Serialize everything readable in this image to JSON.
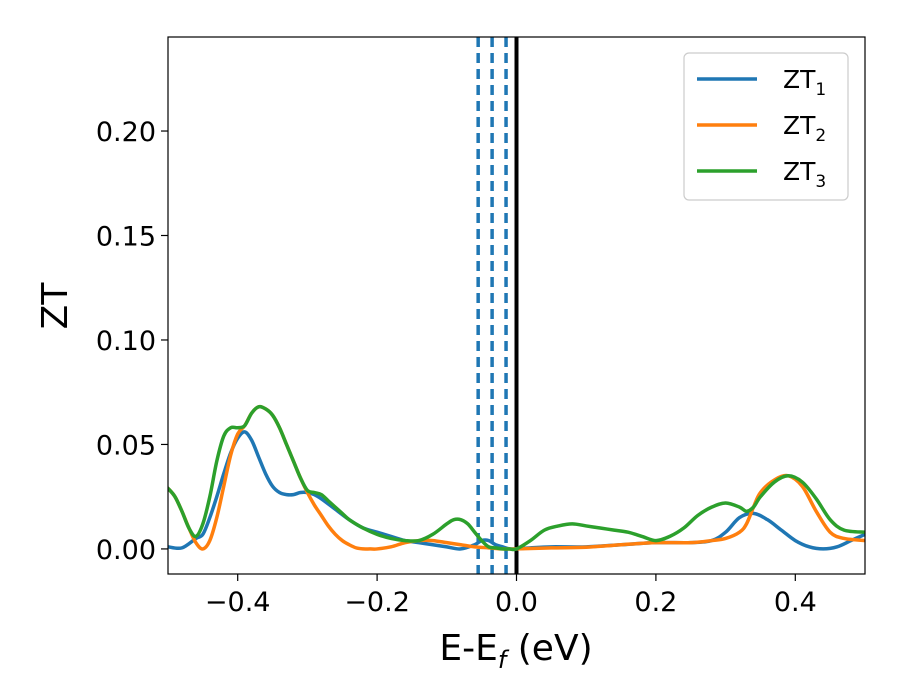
{
  "chart_data": {
    "type": "line",
    "xlabel": "E-E",
    "xlabel_subscript": "f",
    "xlabel_unit": "(eV)",
    "ylabel": "ZT",
    "xlim": [
      -0.5,
      0.5
    ],
    "ylim": [
      -0.012,
      0.245
    ],
    "xticks": [
      -0.4,
      -0.2,
      0.0,
      0.2,
      0.4
    ],
    "xtick_labels": [
      "−0.4",
      "−0.2",
      "0.0",
      "0.2",
      "0.4"
    ],
    "yticks": [
      0.0,
      0.05,
      0.1,
      0.15,
      0.2
    ],
    "ytick_labels": [
      "0.00",
      "0.05",
      "0.10",
      "0.15",
      "0.20"
    ],
    "grid": false,
    "legend_position": "top-right",
    "series": [
      {
        "name": "ZT",
        "name_subscript": "1",
        "color": "#1f77b4",
        "x": [
          -0.5,
          -0.48,
          -0.46,
          -0.45,
          -0.44,
          -0.43,
          -0.42,
          -0.41,
          -0.4,
          -0.39,
          -0.38,
          -0.37,
          -0.36,
          -0.35,
          -0.34,
          -0.33,
          -0.32,
          -0.31,
          -0.3,
          -0.29,
          -0.28,
          -0.26,
          -0.24,
          -0.22,
          -0.2,
          -0.18,
          -0.16,
          -0.14,
          -0.12,
          -0.1,
          -0.08,
          -0.06,
          -0.05,
          -0.04,
          -0.03,
          -0.02,
          -0.01,
          0.0,
          0.02,
          0.05,
          0.1,
          0.15,
          0.2,
          0.25,
          0.28,
          0.3,
          0.32,
          0.34,
          0.36,
          0.38,
          0.4,
          0.42,
          0.44,
          0.46,
          0.48,
          0.5
        ],
        "y": [
          0.001,
          0.0005,
          0.005,
          0.007,
          0.015,
          0.025,
          0.036,
          0.046,
          0.053,
          0.056,
          0.052,
          0.044,
          0.036,
          0.03,
          0.027,
          0.026,
          0.026,
          0.027,
          0.027,
          0.026,
          0.024,
          0.019,
          0.014,
          0.01,
          0.008,
          0.006,
          0.004,
          0.003,
          0.002,
          0.001,
          0.0,
          0.002,
          0.004,
          0.004,
          0.002,
          0.001,
          0.0,
          0.0,
          0.0005,
          0.001,
          0.001,
          0.002,
          0.003,
          0.003,
          0.004,
          0.008,
          0.015,
          0.017,
          0.014,
          0.009,
          0.004,
          0.001,
          0.0,
          0.001,
          0.004,
          0.007
        ]
      },
      {
        "name": "ZT",
        "name_subscript": "2",
        "color": "#ff7f0e",
        "x": [
          -0.5,
          -0.49,
          -0.48,
          -0.47,
          -0.46,
          -0.45,
          -0.44,
          -0.43,
          -0.42,
          -0.41,
          -0.4,
          -0.39,
          -0.38,
          -0.37,
          -0.36,
          -0.35,
          -0.34,
          -0.33,
          -0.32,
          -0.31,
          -0.3,
          -0.29,
          -0.28,
          -0.27,
          -0.26,
          -0.25,
          -0.24,
          -0.23,
          -0.22,
          -0.21,
          -0.2,
          -0.18,
          -0.16,
          -0.14,
          -0.12,
          -0.1,
          -0.08,
          -0.06,
          -0.04,
          -0.02,
          0.0,
          0.05,
          0.1,
          0.15,
          0.2,
          0.25,
          0.28,
          0.3,
          0.32,
          0.33,
          0.34,
          0.35,
          0.37,
          0.39,
          0.41,
          0.43,
          0.45,
          0.47,
          0.5
        ],
        "y": [
          0.029,
          0.025,
          0.018,
          0.01,
          0.003,
          0.0,
          0.004,
          0.015,
          0.03,
          0.045,
          0.055,
          0.059,
          0.065,
          0.068,
          0.067,
          0.064,
          0.058,
          0.05,
          0.042,
          0.034,
          0.027,
          0.021,
          0.016,
          0.011,
          0.007,
          0.004,
          0.002,
          0.0005,
          0.0,
          0.0,
          0.0,
          0.001,
          0.003,
          0.004,
          0.004,
          0.003,
          0.002,
          0.001,
          0.0005,
          0.0,
          0.0,
          0.0005,
          0.0008,
          0.002,
          0.003,
          0.003,
          0.004,
          0.005,
          0.008,
          0.012,
          0.02,
          0.027,
          0.033,
          0.035,
          0.03,
          0.018,
          0.008,
          0.005,
          0.004
        ]
      },
      {
        "name": "ZT",
        "name_subscript": "3",
        "color": "#2ca02c",
        "x": [
          -0.5,
          -0.49,
          -0.48,
          -0.47,
          -0.46,
          -0.45,
          -0.44,
          -0.43,
          -0.42,
          -0.41,
          -0.4,
          -0.39,
          -0.38,
          -0.37,
          -0.36,
          -0.35,
          -0.34,
          -0.33,
          -0.32,
          -0.31,
          -0.3,
          -0.29,
          -0.28,
          -0.27,
          -0.26,
          -0.25,
          -0.24,
          -0.22,
          -0.2,
          -0.18,
          -0.16,
          -0.14,
          -0.12,
          -0.1,
          -0.09,
          -0.08,
          -0.07,
          -0.06,
          -0.05,
          -0.04,
          -0.03,
          -0.02,
          -0.01,
          0.0,
          0.02,
          0.04,
          0.06,
          0.08,
          0.1,
          0.12,
          0.14,
          0.16,
          0.18,
          0.2,
          0.22,
          0.24,
          0.26,
          0.28,
          0.3,
          0.32,
          0.33,
          0.34,
          0.35,
          0.37,
          0.39,
          0.41,
          0.43,
          0.45,
          0.47,
          0.5
        ],
        "y": [
          0.029,
          0.025,
          0.018,
          0.01,
          0.006,
          0.012,
          0.025,
          0.042,
          0.054,
          0.058,
          0.058,
          0.059,
          0.065,
          0.068,
          0.067,
          0.064,
          0.058,
          0.05,
          0.042,
          0.034,
          0.028,
          0.027,
          0.026,
          0.023,
          0.02,
          0.017,
          0.014,
          0.01,
          0.007,
          0.005,
          0.004,
          0.004,
          0.007,
          0.012,
          0.014,
          0.014,
          0.012,
          0.008,
          0.004,
          0.001,
          0.0005,
          0.0,
          0.0,
          0.0,
          0.004,
          0.009,
          0.011,
          0.012,
          0.011,
          0.01,
          0.009,
          0.008,
          0.006,
          0.004,
          0.006,
          0.01,
          0.016,
          0.02,
          0.022,
          0.02,
          0.018,
          0.02,
          0.025,
          0.032,
          0.035,
          0.032,
          0.024,
          0.014,
          0.009,
          0.008
        ]
      }
    ],
    "vlines": [
      {
        "x": -0.055,
        "style": "dashed",
        "color": "#1f77b4"
      },
      {
        "x": -0.035,
        "style": "dashed",
        "color": "#1f77b4"
      },
      {
        "x": -0.015,
        "style": "dashed",
        "color": "#1f77b4"
      },
      {
        "x": 0.0,
        "style": "solid",
        "color": "#000000"
      }
    ]
  }
}
